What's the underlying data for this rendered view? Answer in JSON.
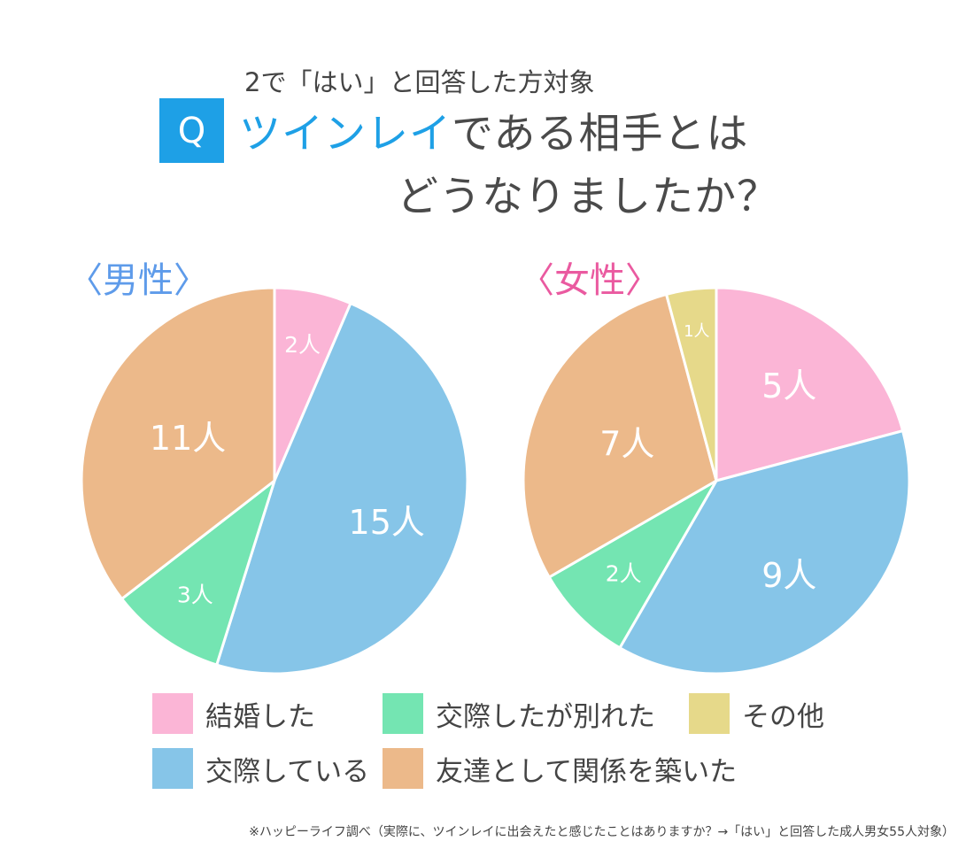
{
  "header": {
    "subtitle": "2で「はい」と回答した方対象",
    "q_badge": "Q",
    "title_accent": "ツインレイ",
    "title_rest_line1": "である相手とは",
    "title_line2": "どうなりましたか？"
  },
  "chart_data": [
    {
      "type": "pie",
      "title": "〈男性〉",
      "unit": "人",
      "slices": [
        {
          "name": "結婚した",
          "value": 2,
          "label": "2人",
          "color": "#fbb5d6"
        },
        {
          "name": "交際している",
          "value": 15,
          "label": "15人",
          "color": "#86c5e8"
        },
        {
          "name": "交際したが別れた",
          "value": 3,
          "label": "3人",
          "color": "#74e5b2"
        },
        {
          "name": "友達として関係を築いた",
          "value": 11,
          "label": "11人",
          "color": "#ecb98a"
        }
      ]
    },
    {
      "type": "pie",
      "title": "〈女性〉",
      "unit": "人",
      "slices": [
        {
          "name": "結婚した",
          "value": 5,
          "label": "5人",
          "color": "#fbb5d6"
        },
        {
          "name": "交際している",
          "value": 9,
          "label": "9人",
          "color": "#86c5e8"
        },
        {
          "name": "交際したが別れた",
          "value": 2,
          "label": "2人",
          "color": "#74e5b2"
        },
        {
          "name": "友達として関係を築いた",
          "value": 7,
          "label": "7人",
          "color": "#ecb98a"
        },
        {
          "name": "その他",
          "value": 1,
          "label": "1人",
          "color": "#e6d98a"
        }
      ]
    }
  ],
  "legend": [
    {
      "label": "結婚した",
      "color": "#fbb5d6"
    },
    {
      "label": "交際したが別れた",
      "color": "#74e5b2"
    },
    {
      "label": "その他",
      "color": "#e6d98a"
    },
    {
      "label": "交際している",
      "color": "#86c5e8"
    },
    {
      "label": "友達として関係を築いた",
      "color": "#ecb98a"
    }
  ],
  "footnote": "※ハッピーライフ調べ（実際に、ツインレイに出会えたと感じたことはありますか？→「はい」と回答した成人男女55人対象）"
}
